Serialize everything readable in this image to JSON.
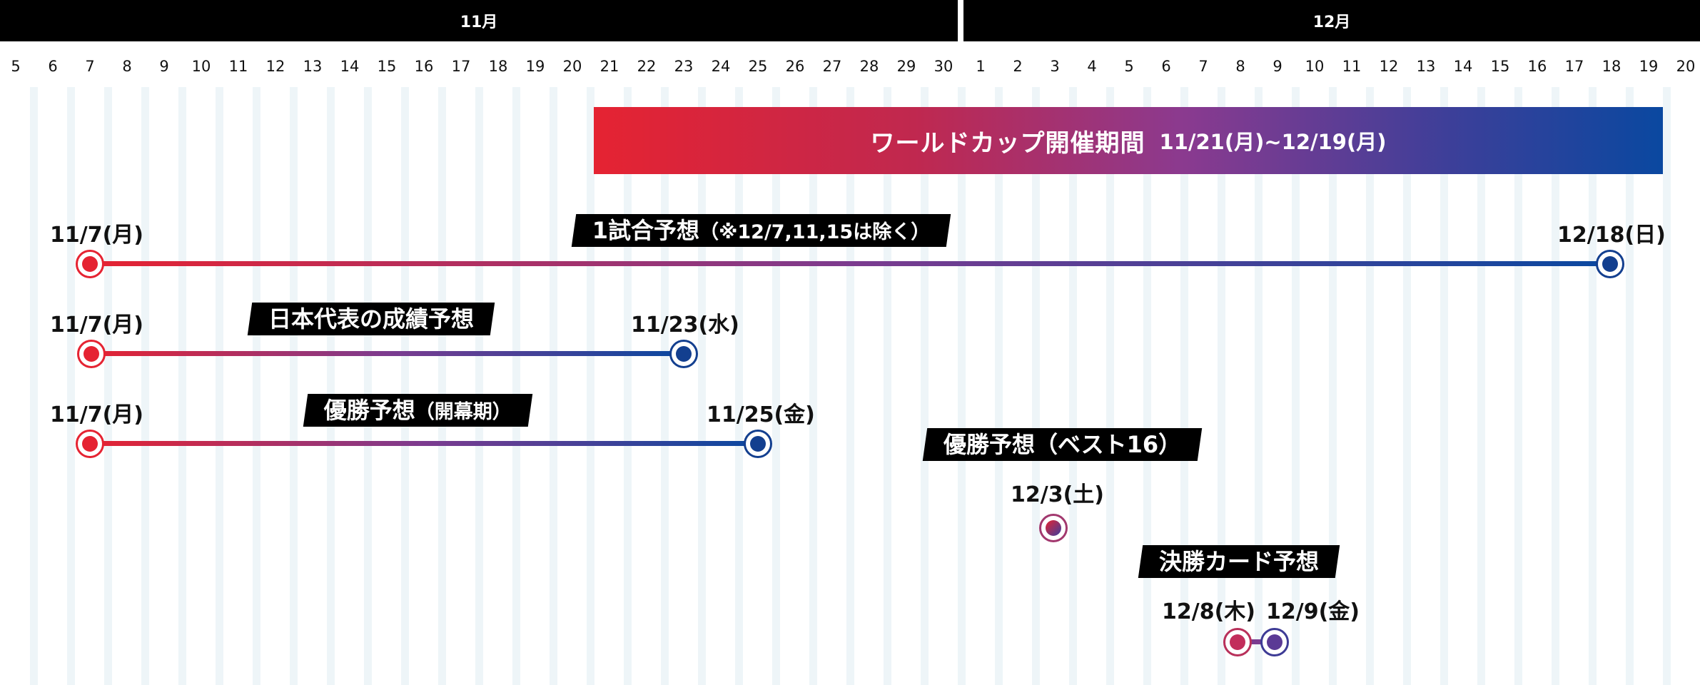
{
  "months": [
    {
      "label": "11月"
    },
    {
      "label": "12月"
    }
  ],
  "nov_days": [
    "5",
    "6",
    "7",
    "8",
    "9",
    "10",
    "11",
    "12",
    "13",
    "14",
    "15",
    "16",
    "17",
    "18",
    "19",
    "20",
    "21",
    "22",
    "23",
    "24",
    "25",
    "26",
    "27",
    "28",
    "29",
    "30"
  ],
  "dec_days": [
    "1",
    "2",
    "3",
    "4",
    "5",
    "6",
    "7",
    "8",
    "9",
    "10",
    "11",
    "12",
    "13",
    "14",
    "15",
    "16",
    "17",
    "18",
    "19",
    "20"
  ],
  "banner": {
    "title": "ワールドカップ開催期間",
    "dates": "11/21(月)~12/19(月)"
  },
  "rows": [
    {
      "tag": "1試合予想",
      "tag_sub": "（※12/7,11,15は除く）",
      "start_label": "11/7(月)",
      "end_label": "12/18(日)"
    },
    {
      "tag": "日本代表の成績予想",
      "start_label": "11/7(月)",
      "end_label": "11/23(水)"
    },
    {
      "tag": "優勝予想",
      "tag_sub": "（開幕期）",
      "start_label": "11/7(月)",
      "end_label": "11/25(金)"
    },
    {
      "tag": "優勝予想（ベスト16）",
      "start_label": "12/3(土)"
    },
    {
      "tag": "決勝カード予想",
      "start_label": "12/8(木)",
      "end_label": "12/9(金)"
    }
  ],
  "colors": {
    "start": "#e52332",
    "end": "#0a48a0",
    "header": "#000000",
    "stripe": "#eef5f8"
  }
}
